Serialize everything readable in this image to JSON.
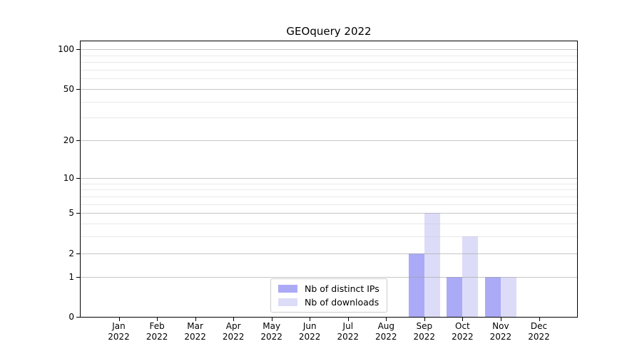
{
  "chart_data": {
    "type": "bar",
    "title": "GEOquery 2022",
    "x_tick_months": [
      "Jan",
      "Feb",
      "Mar",
      "Apr",
      "May",
      "Jun",
      "Jul",
      "Aug",
      "Sep",
      "Oct",
      "Nov",
      "Dec"
    ],
    "x_tick_year": "2022",
    "series": [
      {
        "name": "Nb of distinct IPs",
        "color": "#aaaaf6",
        "values": [
          0,
          0,
          0,
          0,
          0,
          0,
          0,
          0,
          2,
          1,
          1,
          0
        ]
      },
      {
        "name": "Nb of downloads",
        "color": "#dcdcf8",
        "values": [
          0,
          0,
          0,
          0,
          0,
          0,
          0,
          0,
          5,
          3,
          1,
          0
        ]
      }
    ],
    "y_axis": {
      "scale": "log1p",
      "major_ticks": [
        0,
        1,
        2,
        5,
        10,
        20,
        50,
        100
      ],
      "minor_gridlines": [
        3,
        4,
        6,
        7,
        8,
        9,
        30,
        40,
        60,
        70,
        80,
        90
      ],
      "ylim": [
        0,
        116
      ]
    },
    "legend_position": "lower center",
    "grid": true
  },
  "colors": {
    "axis": "#000000",
    "major_grid": "rgba(160,160,160,0.60)",
    "minor_grid": "rgba(190,190,190,0.35)",
    "legend_border": "#cccccc",
    "text": "#000000"
  }
}
